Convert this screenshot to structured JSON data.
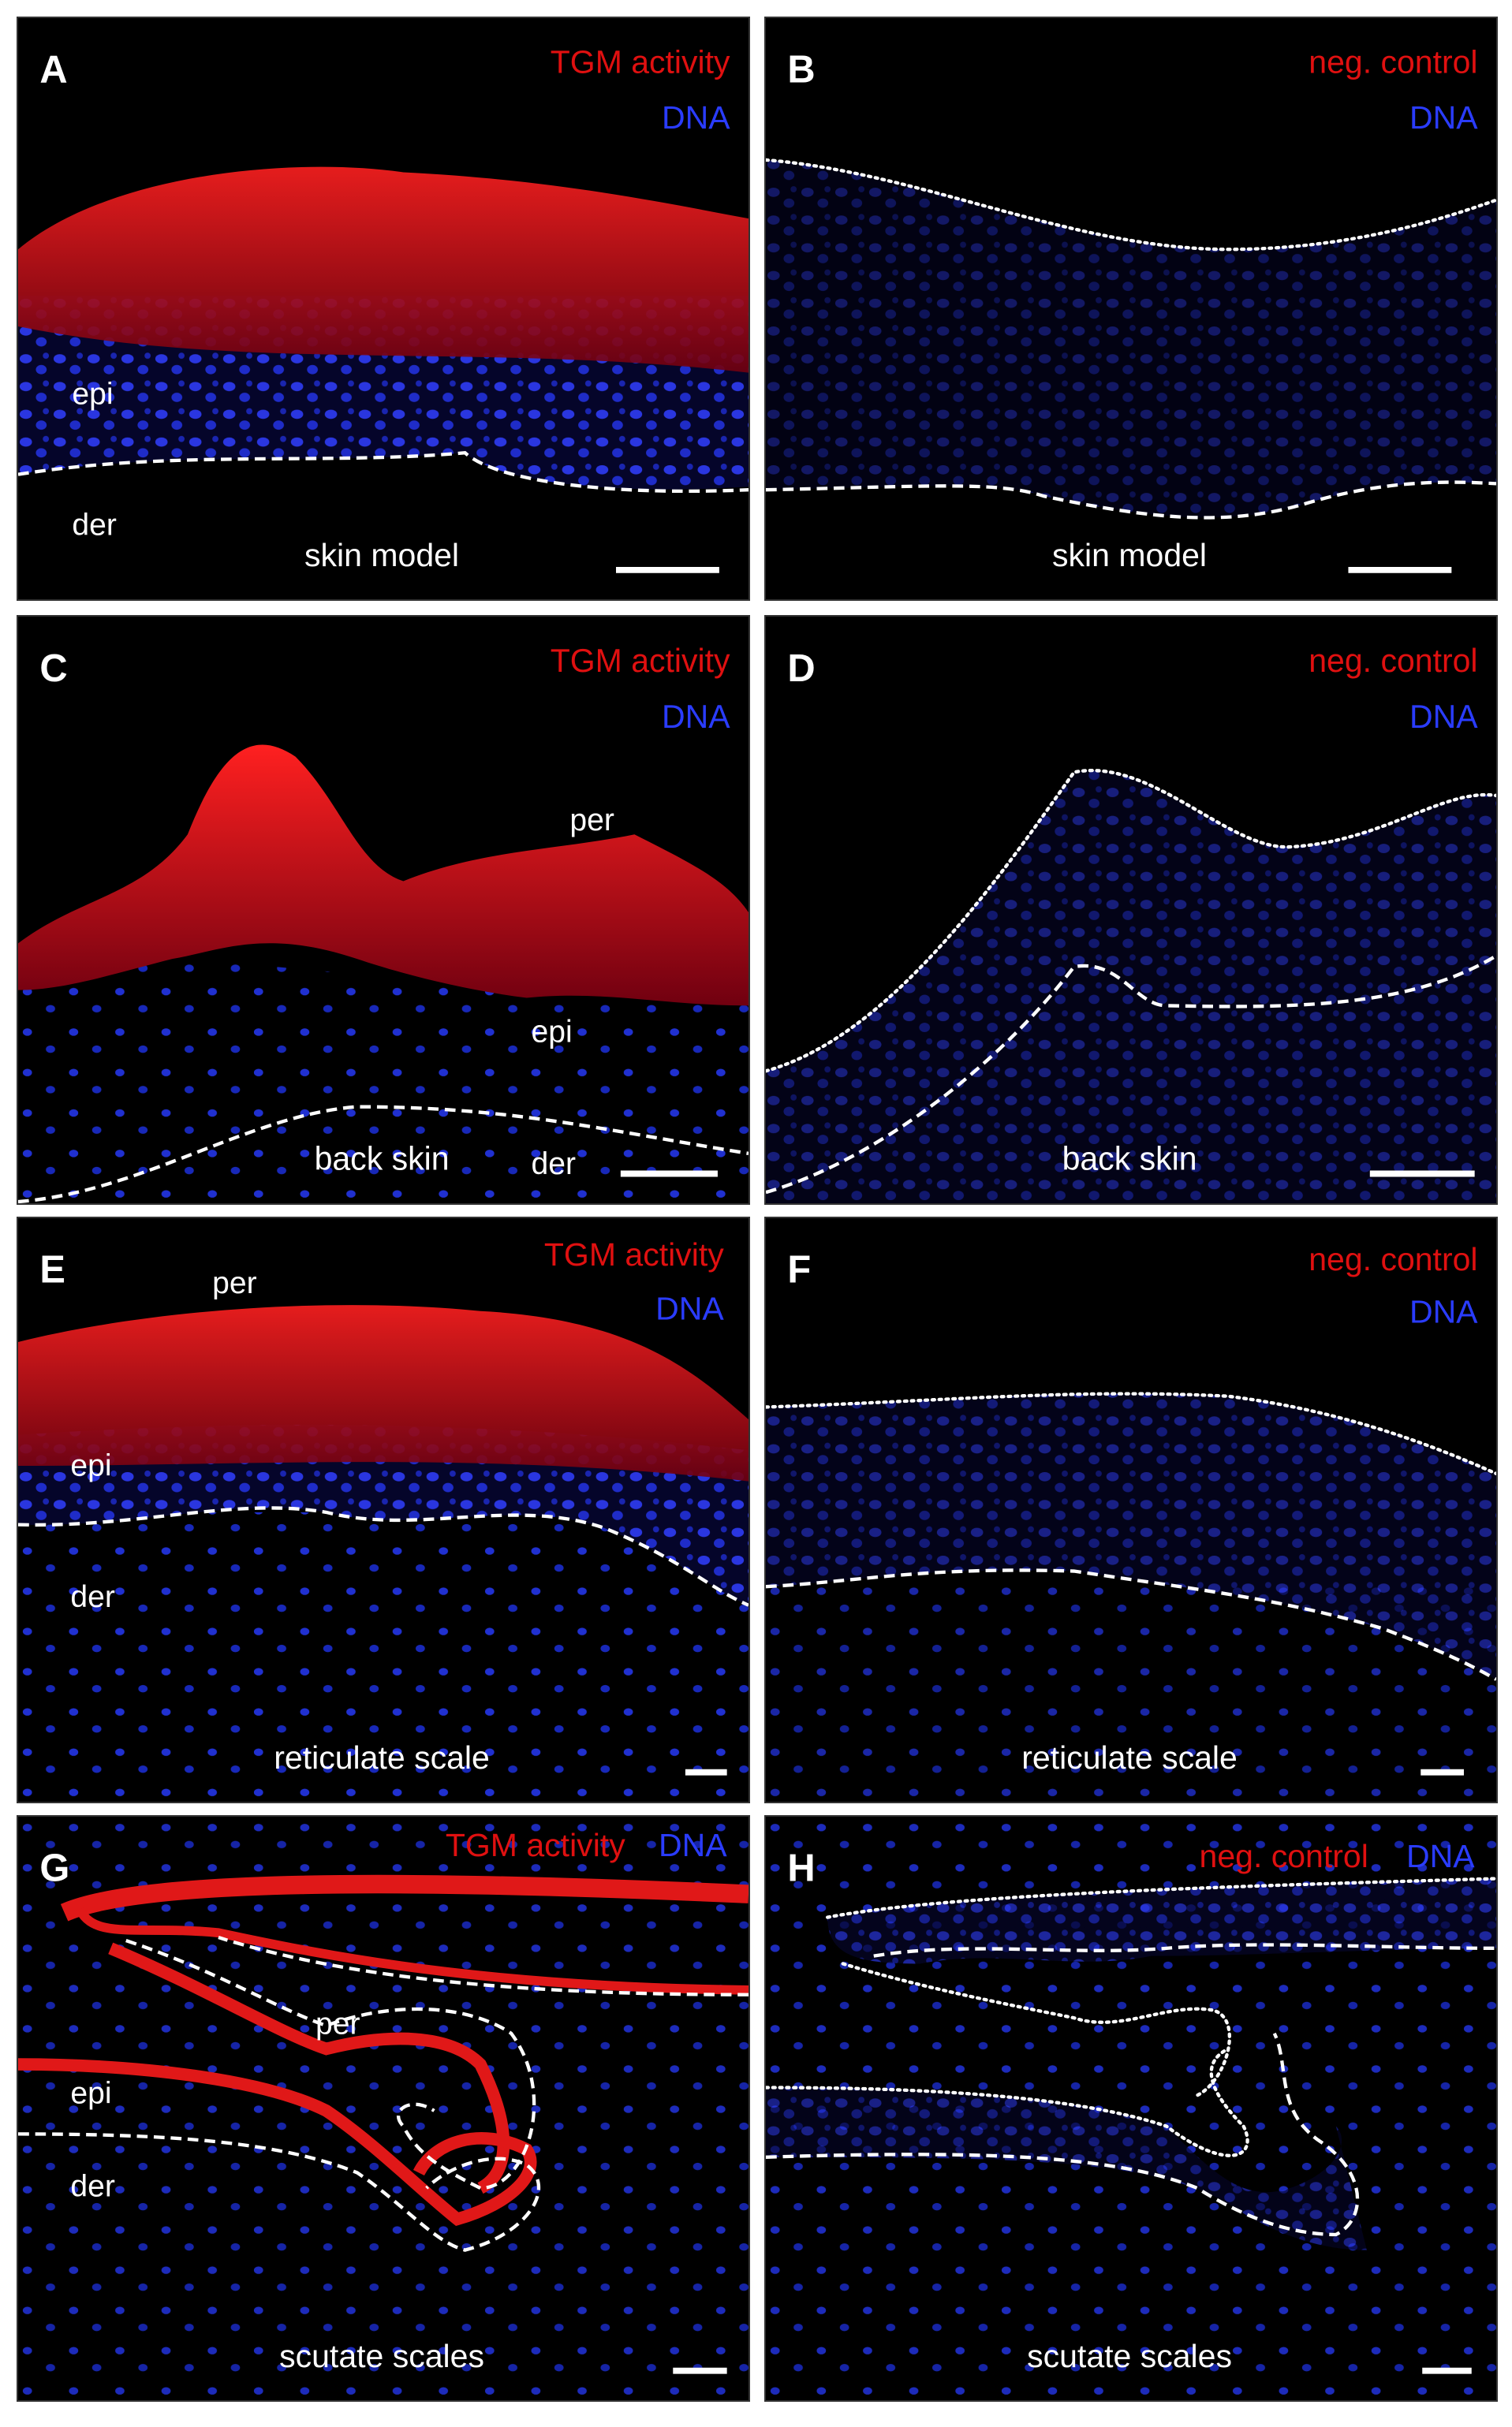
{
  "figure": {
    "panels": [
      {
        "letter": "A",
        "stain": "TGM activity",
        "dna": "DNA",
        "labels": [
          "epi",
          "der"
        ],
        "caption": "skin model"
      },
      {
        "letter": "B",
        "stain": "neg. control",
        "dna": "DNA",
        "labels": [],
        "caption": "skin model"
      },
      {
        "letter": "C",
        "stain": "TGM activity",
        "dna": "DNA",
        "labels": [
          "per",
          "epi",
          "der"
        ],
        "caption": "back skin"
      },
      {
        "letter": "D",
        "stain": "neg. control",
        "dna": "DNA",
        "labels": [],
        "caption": "back skin"
      },
      {
        "letter": "E",
        "stain": "TGM activity",
        "dna": "DNA",
        "labels": [
          "per",
          "epi",
          "der"
        ],
        "caption": "reticulate scale"
      },
      {
        "letter": "F",
        "stain": "neg. control",
        "dna": "DNA",
        "labels": [],
        "caption": "reticulate scale"
      },
      {
        "letter": "G",
        "stain": "TGM activity",
        "dna": "DNA",
        "labels": [
          "epi",
          "per",
          "der"
        ],
        "caption": "scutate scales"
      },
      {
        "letter": "H",
        "stain": "neg. control",
        "dna": "DNA",
        "labels": [],
        "caption": "scutate scales"
      }
    ]
  }
}
